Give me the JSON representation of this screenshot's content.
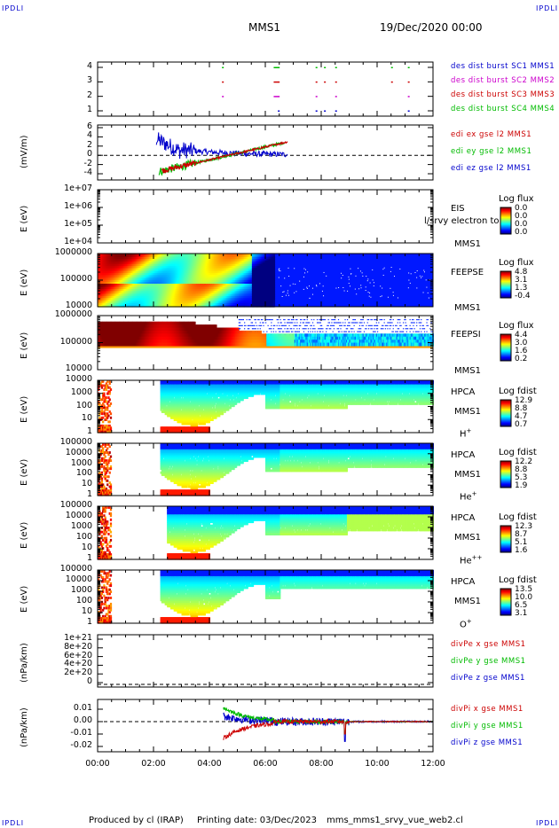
{
  "corners": {
    "tl": "IPDLI",
    "tr": "IPDLI",
    "bl": "IPDLI",
    "br": "IPDLI"
  },
  "header": {
    "title": "MMS1",
    "date": "19/Dec/2020 00:00"
  },
  "footer": {
    "produced": "Produced by cl (IRAP)",
    "printing": "Printing date: 03/Dec/2023",
    "script": "mms_mms1_srvy_vue_web2.cl"
  },
  "chart_data": {
    "x_ticks": [
      "00:00",
      "02:00",
      "04:00",
      "06:00",
      "08:00",
      "10:00",
      "12:00"
    ],
    "x_range_hours": [
      0,
      12
    ],
    "panels": [
      {
        "id": "burst",
        "type": "scatter",
        "yticks": [
          "4",
          "3",
          "2",
          "1"
        ],
        "ylim": [
          0.5,
          4.5
        ],
        "legend": [
          {
            "text": "des dist burst SC1 MMS1",
            "color": "#0000cc"
          },
          {
            "text": "des dist burst SC2 MMS2",
            "color": "#cc00cc"
          },
          {
            "text": "des dist burst SC3 MMS3",
            "color": "#cc0000"
          },
          {
            "text": "des dist burst SC4 MMS4",
            "color": "#00bb00"
          }
        ],
        "times": [
          4.45,
          6.3,
          6.45,
          7.8,
          8.1,
          8.5,
          10.5,
          11.1
        ]
      },
      {
        "id": "edi",
        "type": "line",
        "ylabel": "(mV/m)",
        "yticks": [
          "6",
          "4",
          "2",
          "0",
          "-2",
          "-4"
        ],
        "ylim": [
          -5,
          6
        ],
        "legend": [
          {
            "text": "edi ex gse l2 MMS1",
            "color": "#cc0000"
          },
          {
            "text": "edi ey gse l2 MMS1",
            "color": "#00bb00"
          },
          {
            "text": "edi ez gse l2 MMS1",
            "color": "#0000cc"
          }
        ]
      },
      {
        "id": "eis",
        "type": "heatmap",
        "ylabel": "E (eV)",
        "yticks": [
          "1e+07",
          "1e+06",
          "1e+05",
          "1e+04"
        ],
        "side": [
          "EIS",
          "MMS1"
        ],
        "overlay": "l/srvy electron to",
        "cb_title": "Log flux",
        "cb_values": [
          "0.0",
          "0.0",
          "0.0",
          "0.0"
        ]
      },
      {
        "id": "feepse",
        "type": "heatmap",
        "ylabel": "E (eV)",
        "yticks": [
          "1000000",
          "100000",
          "10000"
        ],
        "side": [
          "FEEPSE",
          "MMS1"
        ],
        "cb_title": "Log flux",
        "cb_values": [
          "4.8",
          "3.1",
          "1.3",
          "-0.4"
        ]
      },
      {
        "id": "feepsi",
        "type": "heatmap",
        "ylabel": "E (eV)",
        "yticks": [
          "1000000",
          "100000",
          "10000"
        ],
        "side": [
          "FEEPSI",
          "MMS1"
        ],
        "cb_title": "Log flux",
        "cb_values": [
          "4.4",
          "3.0",
          "1.6",
          "0.2"
        ]
      },
      {
        "id": "hpca_h",
        "type": "heatmap",
        "ylabel": "E (eV)",
        "yticks": [
          "10000",
          "1000",
          "100",
          "10",
          "1"
        ],
        "side": [
          "HPCA",
          "MMS1"
        ],
        "species": "H",
        "sup": "+",
        "cb_title": "Log fdist",
        "cb_values": [
          "12.9",
          "8.8",
          "4.7",
          "0.7"
        ]
      },
      {
        "id": "hpca_he",
        "type": "heatmap",
        "ylabel": "E (eV)",
        "yticks": [
          "100000",
          "10000",
          "1000",
          "100",
          "10",
          "1"
        ],
        "side": [
          "HPCA",
          "MMS1"
        ],
        "species": "He",
        "sup": "+",
        "cb_title": "Log fdist",
        "cb_values": [
          "12.2",
          "8.8",
          "5.3",
          "1.9"
        ]
      },
      {
        "id": "hpca_hepp",
        "type": "heatmap",
        "ylabel": "E (eV)",
        "yticks": [
          "100000",
          "10000",
          "1000",
          "100",
          "10",
          "1"
        ],
        "side": [
          "HPCA",
          "MMS1"
        ],
        "species": "He",
        "sup": "++",
        "cb_title": "Log fdist",
        "cb_values": [
          "12.3",
          "8.7",
          "5.1",
          "1.6"
        ]
      },
      {
        "id": "hpca_o",
        "type": "heatmap",
        "ylabel": "E (eV)",
        "yticks": [
          "100000",
          "10000",
          "1000",
          "100",
          "10",
          "1"
        ],
        "side": [
          "HPCA",
          "MMS1"
        ],
        "species": "O",
        "sup": "+",
        "cb_title": "Log fdist",
        "cb_values": [
          "13.5",
          "10.0",
          "6.5",
          "3.1"
        ]
      },
      {
        "id": "dpe",
        "type": "line",
        "ylabel": "(nPa/km)",
        "yticks": [
          "1e+21",
          "8e+20",
          "6e+20",
          "4e+20",
          "2e+20",
          "0"
        ],
        "legend": [
          {
            "text": "divPe x gse MMS1",
            "color": "#cc0000"
          },
          {
            "text": "divPe y gse MMS1",
            "color": "#00bb00"
          },
          {
            "text": "divPe z gse MMS1",
            "color": "#0000cc"
          }
        ]
      },
      {
        "id": "dpi",
        "type": "line",
        "ylabel": "(nPa/km)",
        "yticks": [
          "0.01",
          "0.00",
          "-0.01",
          "-0.02"
        ],
        "ylim": [
          -0.025,
          0.017
        ],
        "legend": [
          {
            "text": "divPi x gse MMS1",
            "color": "#cc0000"
          },
          {
            "text": "divPi y gse MMS1",
            "color": "#00bb00"
          },
          {
            "text": "divPi z gse MMS1",
            "color": "#0000cc"
          }
        ]
      }
    ]
  }
}
